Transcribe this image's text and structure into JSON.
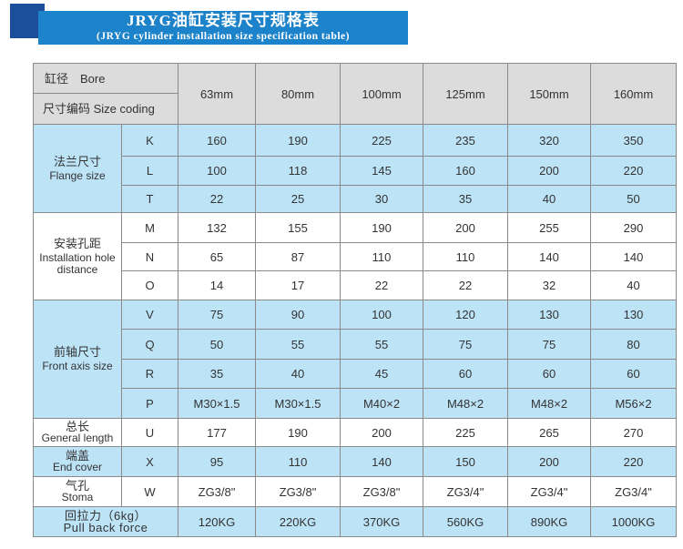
{
  "title": {
    "zh": "JRYG油缸安装尺寸规格表",
    "en": "(JRYG cylinder installation size specification table)"
  },
  "colors": {
    "banner": "#1c82c9",
    "banner_square": "#1b4f9b",
    "header_bg": "#dcdcdc",
    "blue_row": "#bde3f7"
  },
  "header": {
    "bore": "缸径　Bore",
    "coding": "尺寸编码  Size coding",
    "sizes": [
      "63mm",
      "80mm",
      "100mm",
      "125mm",
      "150mm",
      "160mm"
    ]
  },
  "groups": [
    {
      "zh": "法兰尺寸",
      "en": "Flange size",
      "rows": [
        {
          "code": "K",
          "values": [
            "160",
            "190",
            "225",
            "235",
            "320",
            "350"
          ]
        },
        {
          "code": "L",
          "values": [
            "100",
            "118",
            "145",
            "160",
            "200",
            "220"
          ]
        },
        {
          "code": "T",
          "values": [
            "22",
            "25",
            "30",
            "35",
            "40",
            "50"
          ]
        }
      ]
    },
    {
      "zh": "安装孔距",
      "en": "Installation hole distance",
      "rows": [
        {
          "code": "M",
          "values": [
            "132",
            "155",
            "190",
            "200",
            "255",
            "290"
          ]
        },
        {
          "code": "N",
          "values": [
            "65",
            "87",
            "110",
            "110",
            "140",
            "140"
          ]
        },
        {
          "code": "O",
          "values": [
            "14",
            "17",
            "22",
            "22",
            "32",
            "40"
          ]
        }
      ]
    },
    {
      "zh": "前轴尺寸",
      "en": "Front axis size",
      "rows": [
        {
          "code": "V",
          "values": [
            "75",
            "90",
            "100",
            "120",
            "130",
            "130"
          ]
        },
        {
          "code": "Q",
          "values": [
            "50",
            "55",
            "55",
            "75",
            "75",
            "80"
          ]
        },
        {
          "code": "R",
          "values": [
            "35",
            "40",
            "45",
            "60",
            "60",
            "60"
          ]
        },
        {
          "code": "P",
          "values": [
            "M30×1.5",
            "M30×1.5",
            "M40×2",
            "M48×2",
            "M48×2",
            "M56×2"
          ]
        }
      ]
    },
    {
      "zh": "总长",
      "en": "General length",
      "rows": [
        {
          "code": "U",
          "values": [
            "177",
            "190",
            "200",
            "225",
            "265",
            "270"
          ]
        }
      ]
    },
    {
      "zh": "端盖",
      "en": "End cover",
      "rows": [
        {
          "code": "X",
          "values": [
            "95",
            "110",
            "140",
            "150",
            "200",
            "220"
          ]
        }
      ]
    },
    {
      "zh": "气孔",
      "en": "Stoma",
      "rows": [
        {
          "code": "W",
          "values": [
            "ZG3/8\"",
            "ZG3/8\"",
            "ZG3/8\"",
            "ZG3/4\"",
            "ZG3/4\"",
            "ZG3/4\""
          ]
        }
      ]
    }
  ],
  "pull": {
    "zh": "回拉力（6kg）",
    "en": "Pull back force",
    "values": [
      "120KG",
      "220KG",
      "370KG",
      "560KG",
      "890KG",
      "1000KG"
    ]
  }
}
